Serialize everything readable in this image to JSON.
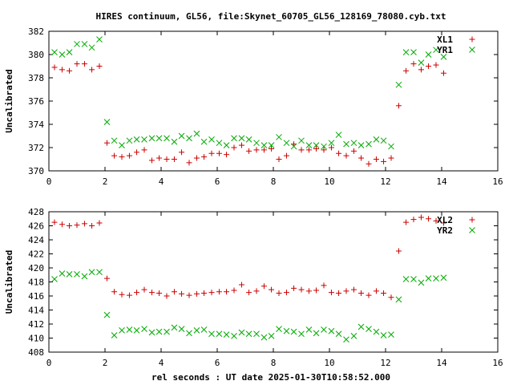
{
  "title": "HIRES continuum, GL56, file:Skynet_60705_GL56_128169_78080.cyb.txt",
  "xlabel": "rel seconds : UT date 2025-01-30T10:58:52.000",
  "colors": {
    "series1": "#cc0000",
    "series2": "#00aa00",
    "axis": "#000000"
  },
  "chart_data": [
    {
      "type": "scatter",
      "ylabel": "Uncalibrated",
      "xlim": [
        0,
        16
      ],
      "ylim": [
        370,
        382
      ],
      "xticks": [
        0,
        2,
        4,
        6,
        8,
        10,
        12,
        14,
        16
      ],
      "yticks": [
        370,
        372,
        374,
        376,
        378,
        380,
        382
      ],
      "legend_position": "top-right",
      "series": [
        {
          "name": "XL1",
          "marker": "plus",
          "points": [
            [
              0.2,
              378.9
            ],
            [
              0.47,
              378.7
            ],
            [
              0.73,
              378.6
            ],
            [
              1.0,
              379.2
            ],
            [
              1.27,
              379.2
            ],
            [
              1.53,
              378.7
            ],
            [
              1.8,
              379.0
            ],
            [
              2.07,
              372.4
            ],
            [
              2.33,
              371.3
            ],
            [
              2.6,
              371.2
            ],
            [
              2.87,
              371.3
            ],
            [
              3.13,
              371.6
            ],
            [
              3.4,
              371.8
            ],
            [
              3.67,
              370.9
            ],
            [
              3.93,
              371.1
            ],
            [
              4.2,
              371.0
            ],
            [
              4.47,
              371.0
            ],
            [
              4.73,
              371.6
            ],
            [
              5.0,
              370.7
            ],
            [
              5.27,
              371.1
            ],
            [
              5.53,
              371.2
            ],
            [
              5.8,
              371.5
            ],
            [
              6.07,
              371.5
            ],
            [
              6.33,
              371.4
            ],
            [
              6.6,
              372.0
            ],
            [
              6.87,
              372.2
            ],
            [
              7.13,
              371.7
            ],
            [
              7.4,
              371.8
            ],
            [
              7.67,
              371.8
            ],
            [
              7.93,
              371.9
            ],
            [
              8.2,
              371.0
            ],
            [
              8.47,
              371.3
            ],
            [
              8.73,
              372.3
            ],
            [
              9.0,
              371.8
            ],
            [
              9.27,
              371.8
            ],
            [
              9.53,
              371.9
            ],
            [
              9.8,
              371.8
            ],
            [
              10.07,
              372.0
            ],
            [
              10.33,
              371.5
            ],
            [
              10.6,
              371.3
            ],
            [
              10.87,
              371.7
            ],
            [
              11.13,
              371.1
            ],
            [
              11.4,
              370.6
            ],
            [
              11.67,
              371.0
            ],
            [
              11.93,
              370.8
            ],
            [
              12.2,
              371.1
            ],
            [
              12.47,
              375.6
            ],
            [
              12.73,
              378.6
            ],
            [
              13.0,
              379.2
            ],
            [
              13.27,
              378.7
            ],
            [
              13.53,
              379.0
            ],
            [
              13.8,
              379.1
            ],
            [
              14.07,
              378.4
            ]
          ]
        },
        {
          "name": "YR1",
          "marker": "cross",
          "points": [
            [
              0.2,
              380.2
            ],
            [
              0.47,
              380.0
            ],
            [
              0.73,
              380.2
            ],
            [
              1.0,
              380.9
            ],
            [
              1.27,
              380.9
            ],
            [
              1.53,
              380.6
            ],
            [
              1.8,
              381.3
            ],
            [
              2.07,
              374.2
            ],
            [
              2.33,
              372.6
            ],
            [
              2.6,
              372.2
            ],
            [
              2.87,
              372.6
            ],
            [
              3.13,
              372.7
            ],
            [
              3.4,
              372.7
            ],
            [
              3.67,
              372.8
            ],
            [
              3.93,
              372.8
            ],
            [
              4.2,
              372.8
            ],
            [
              4.47,
              372.5
            ],
            [
              4.73,
              373.0
            ],
            [
              5.0,
              372.8
            ],
            [
              5.27,
              373.2
            ],
            [
              5.53,
              372.5
            ],
            [
              5.8,
              372.7
            ],
            [
              6.07,
              372.4
            ],
            [
              6.33,
              372.2
            ],
            [
              6.6,
              372.8
            ],
            [
              6.87,
              372.8
            ],
            [
              7.13,
              372.7
            ],
            [
              7.4,
              372.4
            ],
            [
              7.67,
              372.2
            ],
            [
              7.93,
              372.2
            ],
            [
              8.2,
              372.9
            ],
            [
              8.47,
              372.4
            ],
            [
              8.73,
              372.1
            ],
            [
              9.0,
              372.6
            ],
            [
              9.27,
              372.2
            ],
            [
              9.53,
              372.2
            ],
            [
              9.8,
              372.1
            ],
            [
              10.07,
              372.4
            ],
            [
              10.33,
              373.1
            ],
            [
              10.6,
              372.3
            ],
            [
              10.87,
              372.4
            ],
            [
              11.13,
              372.2
            ],
            [
              11.4,
              372.3
            ],
            [
              11.67,
              372.7
            ],
            [
              11.93,
              372.6
            ],
            [
              12.2,
              372.1
            ],
            [
              12.47,
              377.4
            ],
            [
              12.73,
              380.2
            ],
            [
              13.0,
              380.2
            ],
            [
              13.27,
              379.3
            ],
            [
              13.53,
              380.0
            ],
            [
              13.8,
              380.4
            ],
            [
              14.07,
              379.8
            ]
          ]
        }
      ]
    },
    {
      "type": "scatter",
      "ylabel": "Uncalibrated",
      "xlim": [
        0,
        16
      ],
      "ylim": [
        408,
        428
      ],
      "xticks": [
        0,
        2,
        4,
        6,
        8,
        10,
        12,
        14,
        16
      ],
      "yticks": [
        408,
        410,
        412,
        414,
        416,
        418,
        420,
        422,
        424,
        426,
        428
      ],
      "legend_position": "top-right",
      "series": [
        {
          "name": "XL2",
          "marker": "plus",
          "points": [
            [
              0.2,
              426.5
            ],
            [
              0.47,
              426.2
            ],
            [
              0.73,
              426.0
            ],
            [
              1.0,
              426.1
            ],
            [
              1.27,
              426.3
            ],
            [
              1.53,
              426.0
            ],
            [
              1.8,
              426.4
            ],
            [
              2.07,
              418.5
            ],
            [
              2.33,
              416.6
            ],
            [
              2.6,
              416.2
            ],
            [
              2.87,
              416.1
            ],
            [
              3.13,
              416.5
            ],
            [
              3.4,
              416.9
            ],
            [
              3.67,
              416.5
            ],
            [
              3.93,
              416.4
            ],
            [
              4.2,
              416.0
            ],
            [
              4.47,
              416.6
            ],
            [
              4.73,
              416.3
            ],
            [
              5.0,
              416.1
            ],
            [
              5.27,
              416.3
            ],
            [
              5.53,
              416.4
            ],
            [
              5.8,
              416.5
            ],
            [
              6.07,
              416.6
            ],
            [
              6.33,
              416.6
            ],
            [
              6.6,
              416.8
            ],
            [
              6.87,
              417.6
            ],
            [
              7.13,
              416.5
            ],
            [
              7.4,
              416.7
            ],
            [
              7.67,
              417.4
            ],
            [
              7.93,
              416.9
            ],
            [
              8.2,
              416.4
            ],
            [
              8.47,
              416.5
            ],
            [
              8.73,
              417.1
            ],
            [
              9.0,
              416.9
            ],
            [
              9.27,
              416.7
            ],
            [
              9.53,
              416.8
            ],
            [
              9.8,
              417.5
            ],
            [
              10.07,
              416.5
            ],
            [
              10.33,
              416.4
            ],
            [
              10.6,
              416.7
            ],
            [
              10.87,
              416.9
            ],
            [
              11.13,
              416.4
            ],
            [
              11.4,
              416.1
            ],
            [
              11.67,
              416.7
            ],
            [
              11.93,
              416.4
            ],
            [
              12.2,
              415.8
            ],
            [
              12.47,
              422.4
            ],
            [
              12.73,
              426.5
            ],
            [
              13.0,
              426.9
            ],
            [
              13.27,
              427.2
            ],
            [
              13.53,
              427.0
            ],
            [
              13.8,
              426.7
            ],
            [
              14.07,
              426.4
            ]
          ]
        },
        {
          "name": "YR2",
          "marker": "cross",
          "points": [
            [
              0.2,
              418.4
            ],
            [
              0.47,
              419.2
            ],
            [
              0.73,
              419.1
            ],
            [
              1.0,
              419.1
            ],
            [
              1.27,
              418.8
            ],
            [
              1.53,
              419.4
            ],
            [
              1.8,
              419.4
            ],
            [
              2.07,
              413.3
            ],
            [
              2.33,
              410.4
            ],
            [
              2.6,
              411.1
            ],
            [
              2.87,
              411.2
            ],
            [
              3.13,
              411.1
            ],
            [
              3.4,
              411.3
            ],
            [
              3.67,
              410.8
            ],
            [
              3.93,
              410.9
            ],
            [
              4.2,
              410.9
            ],
            [
              4.47,
              411.5
            ],
            [
              4.73,
              411.3
            ],
            [
              5.0,
              410.7
            ],
            [
              5.27,
              411.1
            ],
            [
              5.53,
              411.2
            ],
            [
              5.8,
              410.6
            ],
            [
              6.07,
              410.6
            ],
            [
              6.33,
              410.5
            ],
            [
              6.6,
              410.3
            ],
            [
              6.87,
              410.8
            ],
            [
              7.13,
              410.6
            ],
            [
              7.4,
              410.6
            ],
            [
              7.67,
              410.1
            ],
            [
              7.93,
              410.3
            ],
            [
              8.2,
              411.3
            ],
            [
              8.47,
              411.0
            ],
            [
              8.73,
              410.9
            ],
            [
              9.0,
              410.6
            ],
            [
              9.27,
              411.2
            ],
            [
              9.53,
              410.7
            ],
            [
              9.8,
              411.2
            ],
            [
              10.07,
              411.0
            ],
            [
              10.33,
              410.6
            ],
            [
              10.6,
              409.8
            ],
            [
              10.87,
              410.3
            ],
            [
              11.13,
              411.6
            ],
            [
              11.4,
              411.3
            ],
            [
              11.67,
              410.9
            ],
            [
              11.93,
              410.4
            ],
            [
              12.2,
              410.5
            ],
            [
              12.47,
              415.5
            ],
            [
              12.73,
              418.4
            ],
            [
              13.0,
              418.4
            ],
            [
              13.27,
              417.9
            ],
            [
              13.53,
              418.5
            ],
            [
              13.8,
              418.5
            ],
            [
              14.07,
              418.6
            ]
          ]
        }
      ]
    }
  ]
}
